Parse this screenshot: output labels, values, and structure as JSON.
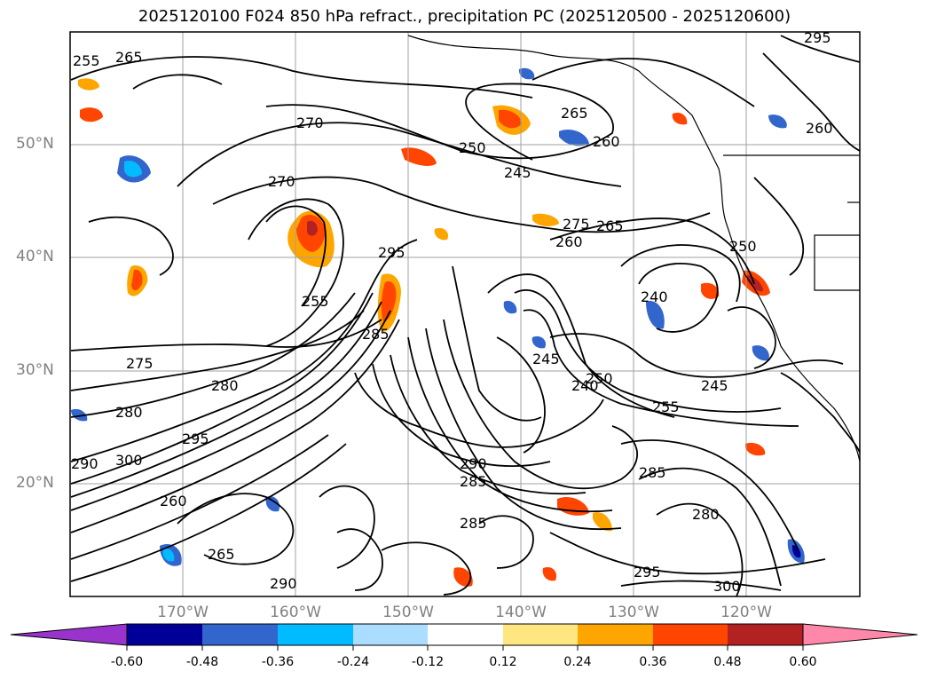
{
  "title": "2025120100 F024 850 hPa refract., precipitation PC (2025120500 - 2025120600)",
  "lat_labels": [
    "50°N",
    "40°N",
    "30°N",
    "20°N"
  ],
  "lon_labels": [
    "170°W",
    "160°W",
    "150°W",
    "140°W",
    "130°W",
    "120°W"
  ],
  "colorbar": {
    "labels": [
      "-0.60",
      "-0.48",
      "-0.36",
      "-0.24",
      "-0.12",
      "0.12",
      "0.24",
      "0.36",
      "0.48",
      "0.60"
    ],
    "colors": [
      "#9933cc",
      "#000099",
      "#3366cc",
      "#00bbff",
      "#aaddff",
      "#ffffff",
      "#ffe680",
      "#ffa500",
      "#ff4500",
      "#b22222",
      "#ff88aa"
    ]
  },
  "contour_labels": [
    "255",
    "265",
    "270",
    "250",
    "245",
    "265",
    "260",
    "275",
    "260",
    "265",
    "250",
    "240",
    "270",
    "255",
    "285",
    "295",
    "275",
    "280",
    "280",
    "300",
    "290",
    "285",
    "295",
    "260",
    "250",
    "245",
    "240",
    "245",
    "255",
    "290",
    "285",
    "280",
    "285",
    "295",
    "300",
    "265",
    "290",
    "260",
    "295"
  ],
  "colors": {
    "warm": "#ff4500",
    "warm_dark": "#b22222",
    "cool": "#3366cc",
    "light_cool": "#00bbff",
    "yellow": "#ffe680",
    "orange": "#ffa500"
  }
}
